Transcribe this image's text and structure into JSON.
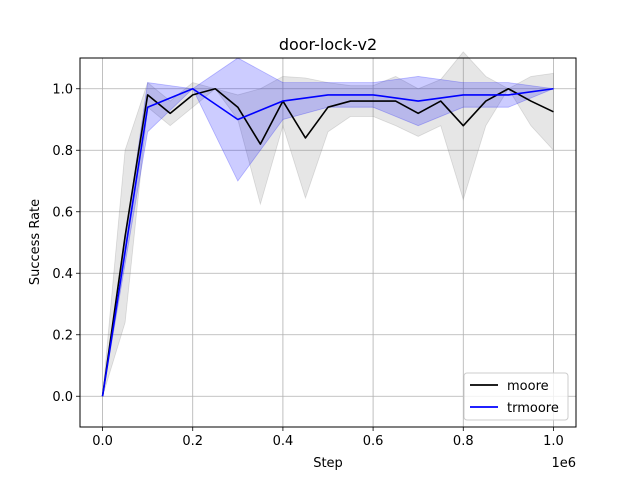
{
  "chart_data": {
    "type": "line",
    "title": "door-lock-v2",
    "xlabel": "Step",
    "ylabel": "Success Rate",
    "x_offset_label": "1e6",
    "xlim": [
      -0.05,
      1.05
    ],
    "ylim": [
      -0.1,
      1.1
    ],
    "x_ticks": [
      0.0,
      0.2,
      0.4,
      0.6,
      0.8,
      1.0
    ],
    "x_tick_labels": [
      "0.0",
      "0.2",
      "0.4",
      "0.6",
      "0.8",
      "1.0"
    ],
    "y_ticks": [
      0.0,
      0.2,
      0.4,
      0.6,
      0.8,
      1.0
    ],
    "y_tick_labels": [
      "0.0",
      "0.2",
      "0.4",
      "0.6",
      "0.8",
      "1.0"
    ],
    "grid": true,
    "legend_position": "lower-right",
    "series": [
      {
        "name": "moore",
        "color": "#000000",
        "band_color": "#808080",
        "x": [
          0.0,
          0.05,
          0.1,
          0.15,
          0.2,
          0.25,
          0.3,
          0.35,
          0.4,
          0.45,
          0.5,
          0.55,
          0.6,
          0.65,
          0.7,
          0.75,
          0.8,
          0.85,
          0.9,
          0.95,
          1.0
        ],
        "mean": [
          0.0,
          0.52,
          0.98,
          0.92,
          0.98,
          1.0,
          0.94,
          0.82,
          0.96,
          0.84,
          0.94,
          0.96,
          0.96,
          0.96,
          0.92,
          0.96,
          0.88,
          0.96,
          1.0,
          0.96,
          0.925
        ],
        "upper": [
          0.0,
          0.8,
          1.02,
          0.96,
          1.02,
          1.0,
          0.98,
          1.0,
          1.04,
          1.035,
          1.02,
          1.01,
          1.01,
          1.04,
          1.0,
          1.03,
          1.12,
          1.04,
          1.0,
          1.04,
          1.05
        ],
        "lower": [
          0.0,
          0.24,
          0.94,
          0.88,
          0.94,
          1.0,
          0.9,
          0.625,
          0.88,
          0.645,
          0.86,
          0.91,
          0.91,
          0.88,
          0.845,
          0.88,
          0.64,
          0.88,
          1.0,
          0.88,
          0.8
        ]
      },
      {
        "name": "trmoore",
        "color": "#0000ff",
        "band_color": "#0000ff",
        "x": [
          0.0,
          0.1,
          0.2,
          0.3,
          0.4,
          0.5,
          0.6,
          0.7,
          0.8,
          0.9,
          1.0
        ],
        "mean": [
          0.0,
          0.94,
          1.0,
          0.9,
          0.96,
          0.98,
          0.98,
          0.96,
          0.98,
          0.98,
          1.0
        ],
        "upper": [
          0.0,
          1.02,
          1.0,
          1.1,
          1.02,
          1.02,
          1.02,
          1.04,
          1.02,
          1.02,
          1.0
        ],
        "lower": [
          0.0,
          0.86,
          1.0,
          0.7,
          0.9,
          0.94,
          0.94,
          0.88,
          0.94,
          0.94,
          1.0
        ]
      }
    ]
  }
}
